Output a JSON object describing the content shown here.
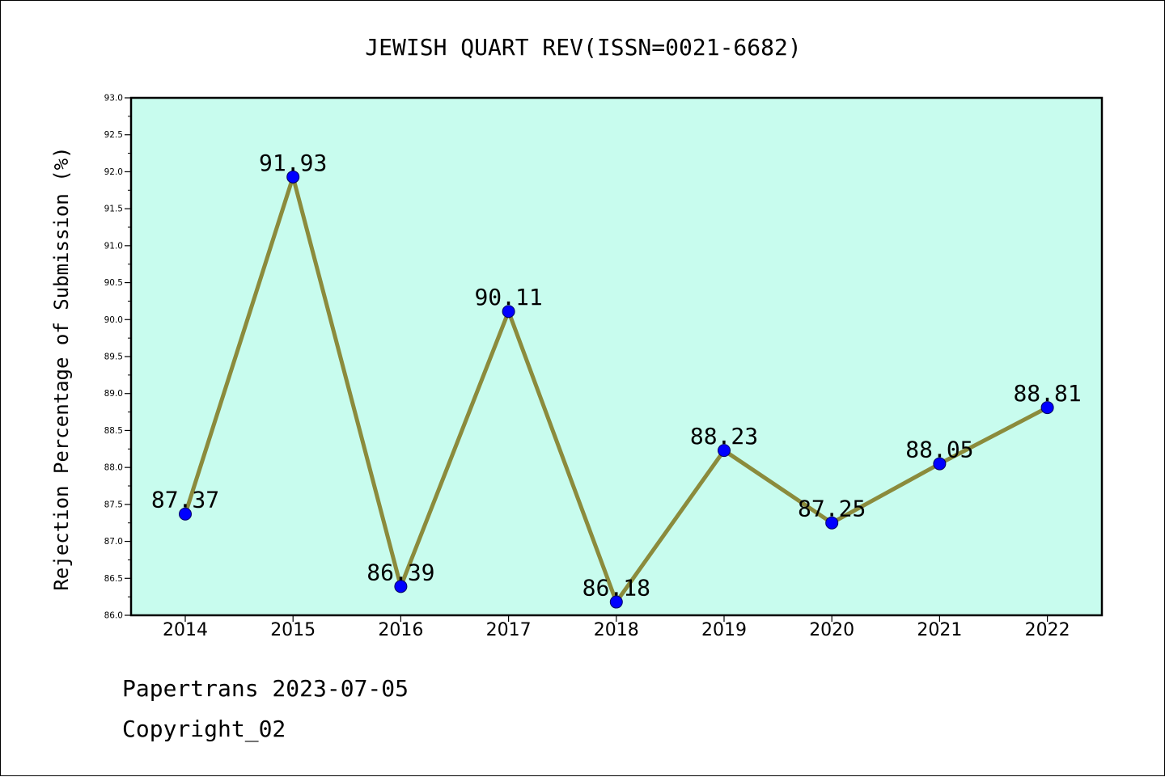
{
  "chart_data": {
    "type": "line",
    "title": "JEWISH QUART REV(ISSN=0021-6682)",
    "ylabel": "Rejection Percentage of Submission (%)",
    "xlabel": "",
    "categories": [
      "2014",
      "2015",
      "2016",
      "2017",
      "2018",
      "2019",
      "2020",
      "2021",
      "2022"
    ],
    "values": [
      87.37,
      91.93,
      86.39,
      90.11,
      86.18,
      88.23,
      87.25,
      88.05,
      88.81
    ],
    "data_labels": [
      "87.37",
      "91.93",
      "86.39",
      "90.11",
      "86.18",
      "88.23",
      "87.25",
      "88.05",
      "88.81"
    ],
    "ylim": [
      86.0,
      93.0
    ],
    "y_ticks": [
      "86.0",
      "86.5",
      "87.0",
      "87.5",
      "88.0",
      "88.5",
      "89.0",
      "89.5",
      "90.0",
      "90.5",
      "91.0",
      "91.5",
      "92.0",
      "92.5",
      "93.0"
    ],
    "grid": false,
    "legend": "none",
    "colors": {
      "plot_background": "#c8fcee",
      "line": "#8b8b3c",
      "marker": "#0000ff",
      "axis": "#000000"
    }
  },
  "footer": {
    "line1": "Papertrans 2023-07-05",
    "line2": "Copyright_02"
  }
}
